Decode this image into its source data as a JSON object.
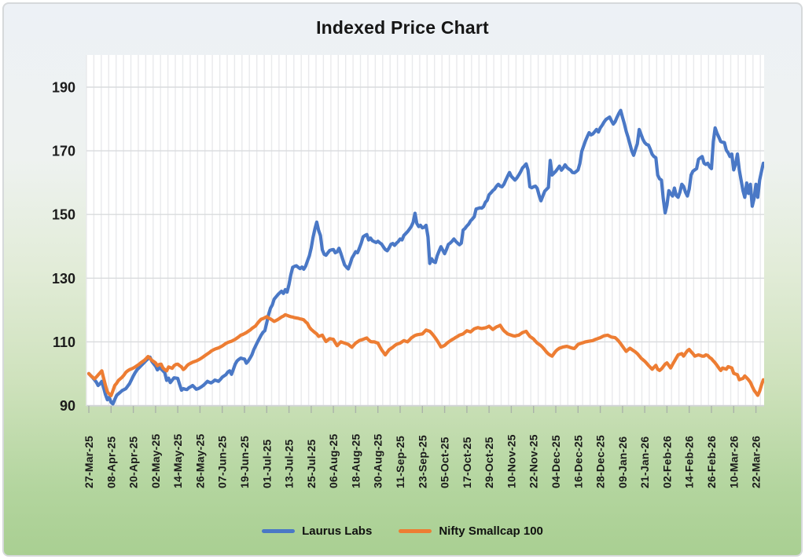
{
  "title": "Indexed Price Chart",
  "colors": {
    "laurus": "#4a78c6",
    "nifty": "#ed7d33",
    "grid_v": "#e9eaec",
    "grid_h": "#d9dbdd",
    "axis": "#cfd3d6",
    "tick": "#aab2aa"
  },
  "chart_data": {
    "type": "line",
    "title": "Indexed Price Chart",
    "ylim": [
      90,
      200
    ],
    "yticks": [
      90,
      110,
      130,
      150,
      170,
      190
    ],
    "grid": true,
    "legend_position": "bottom",
    "x_tick_interval_days": 12,
    "x_total_days": 364,
    "x_tick_labels": [
      "27-Mar-25",
      "08-Apr-25",
      "20-Apr-25",
      "02-May-25",
      "14-May-25",
      "26-May-25",
      "07-Jun-25",
      "19-Jun-25",
      "01-Jul-25",
      "13-Jul-25",
      "25-Jul-25",
      "06-Aug-25",
      "18-Aug-25",
      "30-Aug-25",
      "11-Sep-25",
      "23-Sep-25",
      "05-Oct-25",
      "17-Oct-25",
      "29-Oct-25",
      "10-Nov-25",
      "22-Nov-25",
      "04-Dec-25",
      "16-Dec-25",
      "28-Dec-25",
      "09-Jan-26",
      "21-Jan-26",
      "02-Feb-26",
      "14-Feb-26",
      "26-Feb-26",
      "10-Mar-26",
      "22-Mar-26"
    ],
    "series": [
      {
        "name": "Laurus Labs",
        "color": "#4a78c6",
        "values": [
          100,
          99.4,
          98.8,
          98.1,
          97.4,
          96.3,
          96.8,
          97.6,
          95.5,
          93.4,
          91.8,
          92.6,
          91.0,
          90.5,
          91.9,
          93.2,
          93.7,
          94.2,
          94.7,
          95.0,
          95.3,
          96.1,
          96.9,
          98.1,
          99.3,
          100.3,
          101.2,
          101.8,
          102.4,
          103.0,
          103.6,
          104.2,
          104.7,
          105.2,
          103.9,
          103.1,
          102.4,
          101.2,
          101.9,
          101.5,
          100.9,
          100.3,
          97.9,
          98.6,
          97.2,
          98.0,
          98.7,
          98.6,
          98.5,
          96.6,
          94.8,
          95.3,
          95.1,
          95.0,
          95.6,
          95.9,
          96.3,
          95.7,
          95.1,
          95.3,
          95.6,
          96.0,
          96.4,
          97.0,
          97.6,
          97.3,
          97.1,
          97.5,
          98.0,
          97.8,
          97.6,
          98.2,
          98.9,
          99.3,
          99.7,
          100.5,
          100.9,
          99.8,
          101.4,
          103.0,
          104.0,
          104.5,
          104.9,
          104.7,
          104.6,
          103.3,
          103.9,
          104.9,
          105.9,
          107.5,
          108.7,
          109.9,
          111.0,
          112.1,
          113.0,
          113.5,
          116.0,
          118.5,
          120.5,
          121.6,
          123.4,
          124.1,
          124.8,
          125.4,
          125.9,
          125.2,
          126.4,
          125.6,
          128.0,
          131.0,
          133.4,
          133.7,
          133.9,
          133.4,
          133.0,
          133.5,
          132.8,
          133.8,
          135.4,
          137.0,
          139.5,
          142.8,
          145.5,
          147.6,
          145.0,
          143.4,
          138.9,
          137.5,
          137.2,
          138.0,
          138.7,
          138.9,
          139.0,
          138.0,
          138.3,
          139.4,
          137.8,
          136.0,
          134.2,
          133.5,
          132.9,
          134.5,
          136.3,
          137.3,
          138.3,
          138.0,
          139.4,
          141.0,
          143.0,
          143.4,
          143.7,
          142.0,
          142.6,
          141.8,
          141.5,
          141.2,
          141.6,
          141.1,
          140.7,
          139.8,
          139.0,
          138.6,
          139.5,
          140.6,
          140.9,
          140.3,
          141.0,
          141.5,
          142.3,
          142.0,
          143.4,
          144.0,
          144.6,
          145.4,
          146.2,
          147.5,
          150.4,
          147.2,
          146.2,
          146.6,
          145.8,
          146.0,
          146.6,
          143.0,
          134.6,
          136.1,
          135.2,
          134.9,
          137.0,
          138.5,
          139.9,
          138.8,
          137.7,
          139.0,
          140.6,
          141.0,
          141.6,
          142.3,
          141.6,
          141.0,
          140.5,
          141.0,
          145.1,
          145.6,
          146.4,
          147.0,
          148.0,
          148.6,
          149.3,
          151.7,
          151.9,
          152.1,
          152.0,
          152.5,
          153.8,
          154.5,
          156.2,
          156.8,
          157.5,
          158.0,
          158.9,
          159.5,
          158.9,
          158.7,
          159.5,
          160.8,
          162.0,
          163.2,
          162.0,
          161.4,
          160.8,
          161.5,
          162.4,
          163.4,
          164.6,
          165.2,
          165.9,
          164.0,
          158.7,
          158.4,
          158.7,
          158.9,
          158.2,
          156.0,
          154.3,
          155.8,
          157.3,
          157.9,
          158.5,
          167.0,
          162.4,
          163.0,
          163.6,
          164.4,
          165.2,
          163.9,
          164.6,
          165.6,
          164.8,
          164.3,
          163.9,
          163.2,
          163.1,
          163.5,
          164.0,
          166.0,
          169.8,
          171.5,
          173.1,
          174.5,
          175.7,
          175.0,
          175.3,
          176.0,
          176.7,
          175.9,
          177.2,
          178.0,
          179.0,
          179.8,
          180.2,
          180.6,
          179.5,
          178.4,
          179.1,
          180.5,
          181.7,
          182.7,
          180.5,
          178.5,
          176.1,
          174.3,
          172.1,
          170.0,
          168.6,
          170.5,
          172.2,
          176.7,
          175.2,
          173.6,
          172.6,
          172.0,
          171.8,
          170.5,
          168.9,
          168.2,
          167.8,
          162.4,
          161.2,
          160.8,
          155.0,
          150.5,
          153.0,
          157.5,
          156.5,
          155.8,
          158.3,
          156.0,
          155.4,
          157.0,
          159.5,
          158.8,
          157.0,
          155.8,
          158.0,
          162.4,
          163.6,
          164.0,
          164.4,
          167.3,
          167.8,
          168.2,
          166.1,
          165.7,
          166.1,
          165.0,
          164.4,
          172.9,
          177.2,
          175.5,
          174.3,
          172.9,
          172.7,
          172.6,
          170.2,
          169.4,
          168.2,
          169.0,
          164.0,
          165.7,
          169.0,
          164.0,
          160.8,
          157.5,
          155.4,
          159.9,
          156.6,
          159.5,
          152.6,
          155.0,
          159.5,
          155.4,
          160.8,
          163.5,
          166.1
        ]
      },
      {
        "name": "Nifty Smallcap 100",
        "color": "#ed7d33",
        "values": [
          100,
          99.4,
          98.9,
          98.4,
          98.9,
          99.6,
          100.2,
          100.9,
          98.5,
          96.3,
          94.3,
          93.6,
          93.1,
          94.6,
          96.3,
          97.0,
          97.9,
          98.4,
          98.9,
          99.6,
          100.4,
          100.9,
          101.3,
          101.5,
          101.8,
          102.1,
          102.5,
          102.9,
          103.4,
          103.8,
          104.2,
          104.8,
          105.4,
          104.8,
          104.2,
          103.8,
          103.4,
          102.5,
          102.9,
          103.0,
          101.8,
          101.3,
          100.9,
          102.1,
          101.9,
          101.7,
          102.5,
          102.9,
          103.0,
          102.5,
          102.1,
          101.3,
          101.8,
          102.5,
          103.0,
          103.3,
          103.6,
          103.8,
          104.0,
          104.3,
          104.6,
          105.0,
          105.4,
          105.8,
          106.2,
          106.6,
          107.1,
          107.4,
          107.7,
          107.9,
          108.1,
          108.4,
          108.7,
          109.1,
          109.5,
          109.8,
          110.0,
          110.2,
          110.5,
          110.8,
          111.2,
          111.6,
          112.1,
          112.3,
          112.6,
          112.9,
          113.3,
          113.7,
          114.2,
          114.6,
          115.0,
          115.8,
          116.5,
          117.1,
          117.3,
          117.6,
          117.9,
          117.5,
          117.2,
          116.8,
          116.4,
          116.7,
          117.0,
          117.4,
          117.8,
          118.1,
          118.5,
          118.3,
          118.1,
          117.9,
          117.8,
          117.6,
          117.5,
          117.4,
          117.2,
          117.1,
          116.9,
          116.3,
          115.8,
          114.6,
          113.9,
          113.4,
          112.9,
          112.5,
          111.7,
          111.9,
          112.1,
          111.0,
          110.1,
          110.6,
          111.0,
          110.9,
          110.8,
          109.7,
          108.8,
          109.4,
          110.0,
          109.8,
          109.6,
          109.4,
          109.2,
          108.7,
          108.3,
          109.0,
          109.6,
          110.0,
          110.4,
          110.6,
          110.8,
          111.0,
          111.2,
          110.6,
          110.1,
          110.0,
          110.0,
          109.8,
          109.6,
          108.5,
          107.5,
          106.7,
          105.9,
          106.7,
          107.5,
          107.9,
          108.3,
          108.8,
          109.2,
          109.4,
          109.6,
          110.0,
          110.4,
          110.2,
          110.0,
          110.6,
          111.2,
          111.6,
          112.0,
          112.2,
          112.3,
          112.4,
          112.5,
          113.1,
          113.7,
          113.5,
          113.3,
          112.7,
          112.0,
          111.2,
          110.4,
          109.4,
          108.4,
          108.6,
          108.9,
          109.4,
          109.9,
          110.3,
          110.7,
          111.0,
          111.4,
          111.7,
          112.1,
          112.3,
          112.5,
          113.0,
          113.5,
          113.3,
          113.1,
          113.6,
          114.1,
          114.3,
          114.5,
          114.3,
          114.2,
          114.3,
          114.4,
          114.6,
          114.9,
          114.4,
          113.9,
          114.3,
          114.7,
          114.9,
          115.2,
          114.3,
          113.5,
          113.0,
          112.5,
          112.3,
          112.1,
          111.9,
          111.8,
          112.0,
          112.1,
          112.5,
          112.9,
          113.1,
          113.3,
          112.5,
          111.7,
          111.3,
          110.9,
          110.2,
          109.6,
          109.2,
          108.8,
          108.2,
          107.5,
          106.8,
          106.2,
          105.8,
          105.5,
          106.3,
          107.1,
          107.6,
          108.0,
          108.2,
          108.4,
          108.5,
          108.6,
          108.4,
          108.2,
          108.0,
          107.9,
          108.5,
          109.2,
          109.4,
          109.6,
          109.8,
          110.0,
          110.1,
          110.2,
          110.3,
          110.4,
          110.7,
          110.9,
          111.1,
          111.3,
          111.6,
          111.9,
          112.0,
          112.1,
          111.8,
          111.5,
          111.4,
          111.3,
          110.8,
          110.2,
          109.4,
          108.6,
          107.8,
          107.0,
          107.5,
          108.0,
          107.6,
          107.2,
          106.8,
          106.3,
          105.6,
          104.9,
          104.4,
          103.9,
          103.3,
          102.6,
          102.0,
          101.4,
          102.0,
          102.6,
          101.4,
          101.0,
          101.5,
          102.2,
          103.0,
          103.4,
          102.6,
          101.8,
          102.9,
          103.9,
          104.9,
          105.9,
          106.1,
          106.3,
          105.5,
          106.4,
          107.2,
          107.6,
          106.9,
          106.3,
          105.5,
          105.7,
          105.9,
          105.7,
          105.5,
          105.5,
          105.9,
          105.7,
          105.1,
          104.7,
          104.0,
          103.4,
          102.6,
          101.8,
          101.0,
          101.8,
          101.6,
          101.4,
          102.2,
          102.0,
          101.8,
          100.1,
          99.9,
          99.7,
          98.1,
          98.3,
          98.5,
          99.3,
          98.7,
          98.1,
          97.3,
          96.0,
          94.8,
          94.0,
          93.2,
          94.5,
          96.4,
          98.1
        ]
      }
    ]
  }
}
